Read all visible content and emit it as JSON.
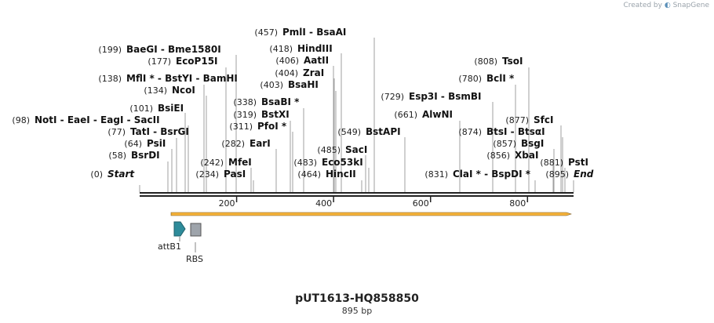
{
  "credit": {
    "prefix": "Created by",
    "brand": "SnapGene"
  },
  "plasmid": {
    "name": "pUT1613-HQ858850",
    "size_label": "895 bp",
    "length": 895
  },
  "ruler": {
    "ticks": [
      200,
      400,
      600,
      800
    ]
  },
  "features": [
    {
      "name": "attB1",
      "type": "arrow",
      "color": "#2e8b9a"
    },
    {
      "name": "RBS",
      "type": "box",
      "color": "#9ea4ab"
    }
  ],
  "sites": [
    {
      "pos": "(0)",
      "label": "Start",
      "italic": true
    },
    {
      "pos": "(58)",
      "label": "BsrDI"
    },
    {
      "pos": "(64)",
      "label": "PsiI"
    },
    {
      "pos": "(77)",
      "label": "TatI - BsrGI"
    },
    {
      "pos": "(98)",
      "label": "NotI - EaeI - EagI - SacII"
    },
    {
      "pos": "(101)",
      "label": "BsiEI"
    },
    {
      "pos": "(134)",
      "label": "NcoI"
    },
    {
      "pos": "(138)",
      "label": "MflI * - BstYI - BamHI"
    },
    {
      "pos": "(177)",
      "label": "EcoP15I"
    },
    {
      "pos": "(199)",
      "label": "BaeGI - Bme1580I"
    },
    {
      "pos": "(234)",
      "label": "PasI"
    },
    {
      "pos": "(242)",
      "label": "MfeI"
    },
    {
      "pos": "(282)",
      "label": "EarI"
    },
    {
      "pos": "(311)",
      "label": "PfoI *"
    },
    {
      "pos": "(319)",
      "label": "BstXI"
    },
    {
      "pos": "(338)",
      "label": "BsaBI *"
    },
    {
      "pos": "(403)",
      "label": "BsaHI"
    },
    {
      "pos": "(404)",
      "label": "ZraI"
    },
    {
      "pos": "(406)",
      "label": "AatII"
    },
    {
      "pos": "(418)",
      "label": "HindIII"
    },
    {
      "pos": "(457)",
      "label": "PmlI - BsaAI"
    },
    {
      "pos": "(464)",
      "label": "HincII"
    },
    {
      "pos": "(483)",
      "label": "Eco53kI"
    },
    {
      "pos": "(485)",
      "label": "SacI"
    },
    {
      "pos": "(549)",
      "label": "BstAPI"
    },
    {
      "pos": "(661)",
      "label": "AlwNI"
    },
    {
      "pos": "(729)",
      "label": "Esp3I - BsmBI"
    },
    {
      "pos": "(780)",
      "label": "BclI *"
    },
    {
      "pos": "(808)",
      "label": "TsoI"
    },
    {
      "pos": "(831)",
      "label": "ClaI * - BspDI *"
    },
    {
      "pos": "(856)",
      "label": "XbaI"
    },
    {
      "pos": "(857)",
      "label": "BsgI"
    },
    {
      "pos": "(874)",
      "label": "BtsI - BtsαI"
    },
    {
      "pos": "(877)",
      "label": "SfcI"
    },
    {
      "pos": "(881)",
      "label": "PstI"
    },
    {
      "pos": "(895)",
      "label": "End",
      "italic": true
    }
  ]
}
